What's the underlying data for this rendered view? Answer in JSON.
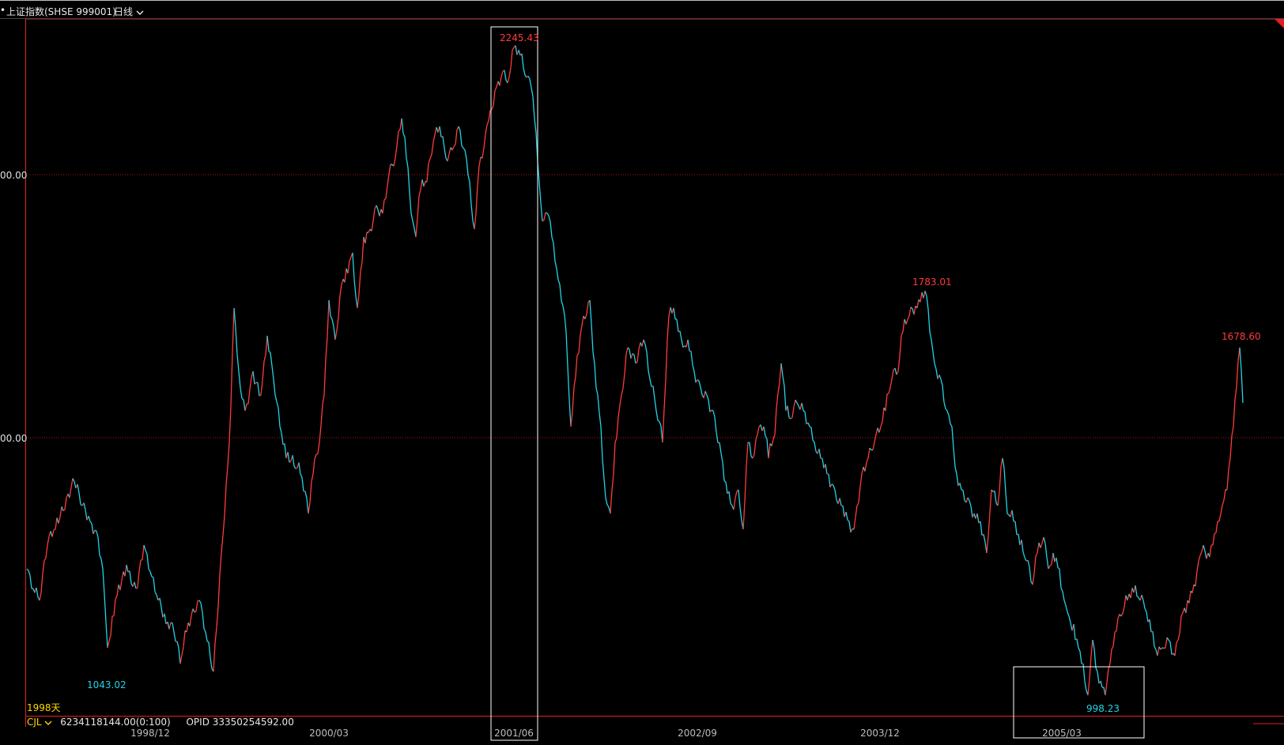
{
  "header": {
    "title": "上证指数(SHSE 999001)",
    "period_label": "日线"
  },
  "chart_data": {
    "type": "line",
    "y_axis_labels": [
      "00.00",
      "00.00"
    ],
    "x_tick_labels": [
      "1998/12",
      "2000/03",
      "2001/06",
      "2002/09",
      "2003/12",
      "2005/03"
    ],
    "annotations": {
      "high": "2245.43",
      "low_left": "1043.02",
      "peak_2004": "1783.01",
      "low_2005": "998.23",
      "last": "1678.60"
    },
    "days_label": "1998天",
    "grid": "dotted-horizontal",
    "colors": {
      "up": "#ff3b3b",
      "down": "#22d3e6",
      "frame": "#e81e1e",
      "highlight": "#ffffff"
    }
  },
  "indicator": {
    "name": "CJL",
    "value": "6234118144.00(0:100)",
    "opid": "OPID 33350254592.00"
  }
}
